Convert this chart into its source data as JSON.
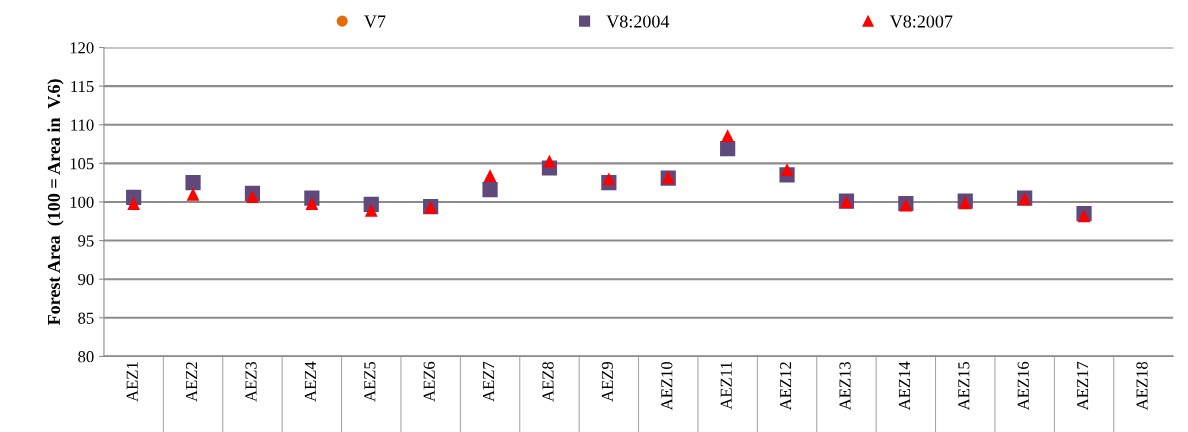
{
  "chart_data": {
    "type": "scatter",
    "ylabel": "Forest Area  (100 = Area in  V.6)",
    "categories": [
      "AEZ1",
      "AEZ2",
      "AEZ3",
      "AEZ4",
      "AEZ5",
      "AEZ6",
      "AEZ7",
      "AEZ8",
      "AEZ9",
      "AEZ10",
      "AEZ11",
      "AEZ12",
      "AEZ13",
      "AEZ14",
      "AEZ15",
      "AEZ16",
      "AEZ17",
      "AEZ18"
    ],
    "series": [
      {
        "name": "V7",
        "color": "#e46c0a",
        "marker": "circle",
        "values": [
          null,
          null,
          null,
          null,
          null,
          null,
          null,
          null,
          null,
          null,
          null,
          null,
          null,
          null,
          null,
          null,
          null,
          null
        ]
      },
      {
        "name": "V8:2004",
        "color": "#604a7b",
        "marker": "square",
        "values": [
          100.6,
          102.5,
          101.1,
          100.5,
          99.7,
          99.4,
          101.6,
          104.4,
          102.5,
          103.1,
          106.9,
          103.5,
          100.1,
          99.8,
          100.1,
          100.5,
          98.5,
          null
        ]
      },
      {
        "name": "V8:2007",
        "color": "#ff0000",
        "marker": "triangle",
        "values": [
          99.8,
          101.0,
          100.7,
          99.8,
          98.9,
          99.3,
          103.4,
          105.3,
          103.0,
          103.2,
          108.6,
          104.2,
          100.0,
          99.6,
          99.9,
          100.4,
          98.2,
          null
        ]
      }
    ],
    "ylim": [
      80,
      120
    ],
    "yticks": [
      80,
      85,
      90,
      95,
      100,
      105,
      110,
      115,
      120
    ],
    "grid": "y",
    "legend": "top"
  }
}
